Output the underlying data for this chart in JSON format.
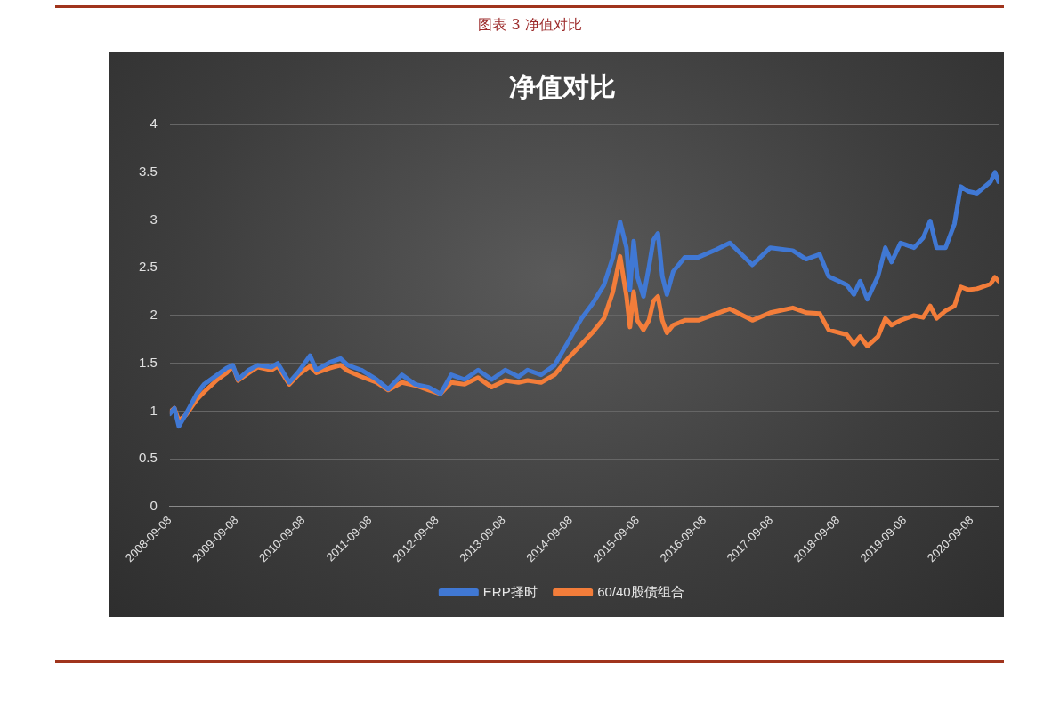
{
  "chart_data": {
    "type": "line",
    "title": "净值对比",
    "annotations": [
      "图表 3 净值对比"
    ],
    "x": [
      "2008-09-08",
      "2008-10-03",
      "2008-10-27",
      "2008-12-05",
      "2009-02-02",
      "2009-03-14",
      "2009-05-26",
      "2009-07-15",
      "2009-08-18",
      "2009-09-16",
      "2009-11-14",
      "2010-01-02",
      "2010-03-17",
      "2010-04-21",
      "2010-06-23",
      "2010-08-12",
      "2010-10-14",
      "2010-11-18",
      "2011-01-30",
      "2011-03-30",
      "2011-05-09",
      "2011-07-21",
      "2011-10-13",
      "2011-12-16",
      "2012-02-28",
      "2012-05-11",
      "2012-07-24",
      "2012-09-26",
      "2012-11-24",
      "2013-02-05",
      "2013-04-20",
      "2013-07-03",
      "2013-09-15",
      "2013-11-27",
      "2014-01-15",
      "2014-03-30",
      "2014-06-12",
      "2014-08-24",
      "2014-11-06",
      "2015-01-04",
      "2015-03-09",
      "2015-04-27",
      "2015-06-05",
      "2015-07-10",
      "2015-07-29",
      "2015-08-18",
      "2015-09-07",
      "2015-10-11",
      "2015-11-10",
      "2015-12-04",
      "2015-12-29",
      "2016-01-22",
      "2016-02-16",
      "2016-03-21",
      "2016-05-24",
      "2016-08-06",
      "2016-11-12",
      "2017-01-25",
      "2017-05-28",
      "2017-09-03",
      "2018-01-04",
      "2018-03-18",
      "2018-05-31",
      "2018-07-19",
      "2018-10-26",
      "2018-12-04",
      "2019-01-07",
      "2019-02-16",
      "2019-04-15",
      "2019-05-25",
      "2019-06-28",
      "2019-08-16",
      "2019-10-29",
      "2019-12-17",
      "2020-01-25",
      "2020-02-29",
      "2020-04-18",
      "2020-06-06",
      "2020-07-10",
      "2020-08-19",
      "2020-10-07",
      "2020-12-20",
      "2021-01-13",
      "2021-02-02"
    ],
    "series": [
      {
        "name": "ERP择时",
        "color": "#4078d4",
        "values": [
          0.97,
          1.03,
          0.84,
          0.97,
          1.18,
          1.28,
          1.38,
          1.45,
          1.48,
          1.33,
          1.43,
          1.48,
          1.46,
          1.5,
          1.3,
          1.41,
          1.58,
          1.43,
          1.51,
          1.55,
          1.48,
          1.43,
          1.33,
          1.23,
          1.38,
          1.28,
          1.25,
          1.18,
          1.38,
          1.33,
          1.43,
          1.33,
          1.43,
          1.36,
          1.43,
          1.38,
          1.48,
          1.72,
          1.97,
          2.12,
          2.32,
          2.61,
          2.98,
          2.71,
          2.27,
          2.78,
          2.41,
          2.2,
          2.51,
          2.79,
          2.86,
          2.41,
          2.22,
          2.46,
          2.61,
          2.61,
          2.69,
          2.76,
          2.53,
          2.71,
          2.68,
          2.59,
          2.64,
          2.41,
          2.32,
          2.22,
          2.36,
          2.17,
          2.41,
          2.71,
          2.56,
          2.76,
          2.71,
          2.81,
          2.99,
          2.71,
          2.71,
          2.96,
          3.35,
          3.3,
          3.28,
          3.4,
          3.5,
          3.4
        ]
      },
      {
        "name": "60/40股债组合",
        "color": "#f37d3a",
        "values": [
          0.99,
          1.03,
          0.9,
          0.96,
          1.12,
          1.2,
          1.33,
          1.4,
          1.47,
          1.32,
          1.4,
          1.46,
          1.43,
          1.47,
          1.28,
          1.38,
          1.47,
          1.4,
          1.45,
          1.48,
          1.42,
          1.36,
          1.3,
          1.22,
          1.3,
          1.27,
          1.22,
          1.18,
          1.3,
          1.28,
          1.35,
          1.25,
          1.32,
          1.3,
          1.32,
          1.3,
          1.38,
          1.55,
          1.7,
          1.82,
          1.97,
          2.25,
          2.62,
          2.2,
          1.88,
          2.25,
          1.95,
          1.85,
          1.95,
          2.15,
          2.2,
          1.95,
          1.82,
          1.9,
          1.95,
          1.95,
          2.02,
          2.07,
          1.95,
          2.03,
          2.08,
          2.03,
          2.02,
          1.85,
          1.8,
          1.7,
          1.78,
          1.68,
          1.78,
          1.97,
          1.9,
          1.95,
          2,
          1.98,
          2.1,
          1.97,
          2.05,
          2.1,
          2.3,
          2.27,
          2.28,
          2.33,
          2.4,
          2.36
        ]
      }
    ],
    "xlim": [
      "2008-09-08",
      "2021-02-02"
    ],
    "xticks": [
      "2008-09-08",
      "2009-09-08",
      "2010-09-08",
      "2011-09-08",
      "2012-09-08",
      "2013-09-08",
      "2014-09-08",
      "2015-09-08",
      "2016-09-08",
      "2017-09-08",
      "2018-09-08",
      "2019-09-08",
      "2020-09-08"
    ],
    "ylim": [
      0,
      4
    ],
    "yticks": [
      0,
      0.5,
      1,
      1.5,
      2,
      2.5,
      3,
      3.5,
      4
    ],
    "grid": "y",
    "legend": "bottom",
    "marker": "none",
    "line_style": "solid"
  }
}
